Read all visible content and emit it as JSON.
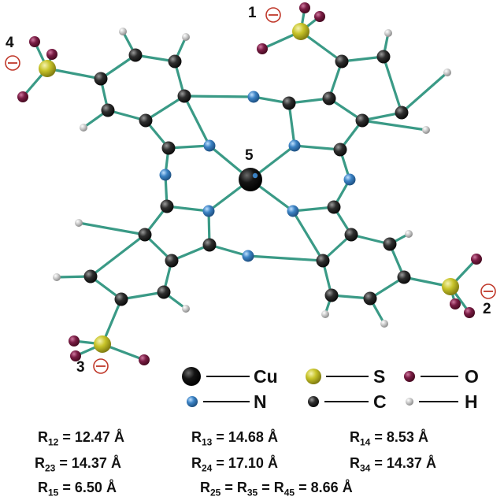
{
  "colors": {
    "bond": "#3a9a86",
    "Cu": "#111111",
    "N": "#3b82c4",
    "C": "#2e2e2e",
    "H": "#c8c8c8",
    "S": "#c8c42a",
    "O": "#7a1d45",
    "charge": "#c0392b"
  },
  "sites": [
    {
      "id": "1",
      "label": "1",
      "charge_icon": "minus-circle-icon"
    },
    {
      "id": "2",
      "label": "2",
      "charge_icon": "minus-circle-icon"
    },
    {
      "id": "3",
      "label": "3",
      "charge_icon": "minus-circle-icon"
    },
    {
      "id": "4",
      "label": "4",
      "charge_icon": "minus-circle-icon"
    },
    {
      "id": "5",
      "label": "5"
    }
  ],
  "legend": [
    {
      "element": "Cu",
      "label": "Cu"
    },
    {
      "element": "S",
      "label": "S"
    },
    {
      "element": "O",
      "label": "O"
    },
    {
      "element": "N",
      "label": "N"
    },
    {
      "element": "C",
      "label": "C"
    },
    {
      "element": "H",
      "label": "H"
    }
  ],
  "distances": [
    {
      "pair": "12",
      "value": "12.47",
      "unit": "Å"
    },
    {
      "pair": "13",
      "value": "14.68",
      "unit": "Å"
    },
    {
      "pair": "14",
      "value": "8.53",
      "unit": "Å"
    },
    {
      "pair": "23",
      "value": "14.37",
      "unit": "Å"
    },
    {
      "pair": "24",
      "value": "17.10",
      "unit": "Å"
    },
    {
      "pair": "34",
      "value": "14.37",
      "unit": "Å"
    },
    {
      "pair": "15",
      "value": "6.50",
      "unit": "Å"
    },
    {
      "pairs": [
        "25",
        "35",
        "45"
      ],
      "value": "8.66",
      "unit": "Å"
    }
  ]
}
